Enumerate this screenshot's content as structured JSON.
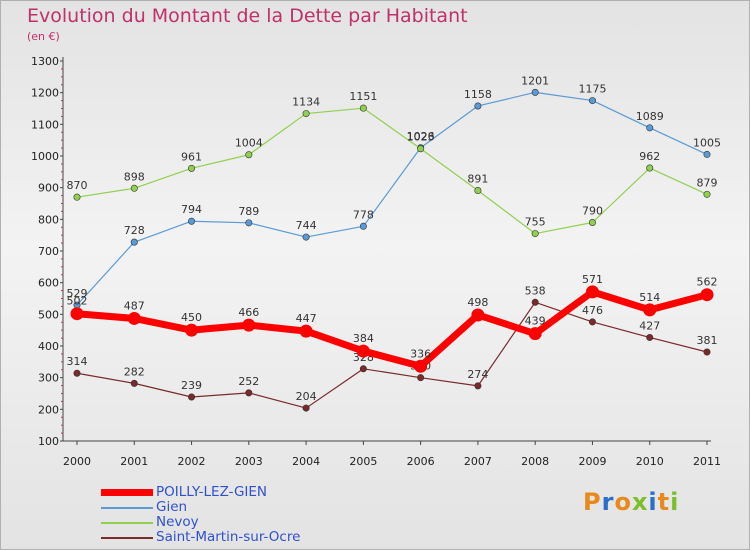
{
  "title": "Evolution du Montant de la Dette par Habitant",
  "subtitle": "(en €)",
  "logo": {
    "text": "Proxiti",
    "colors": [
      "#e8891c",
      "#2a6fc9",
      "#e8891c",
      "#7bbf2a",
      "#2a6fc9",
      "#e8891c",
      "#7bbf2a"
    ]
  },
  "chart_data": {
    "type": "line",
    "x": [
      "2000",
      "2001",
      "2002",
      "2003",
      "2004",
      "2005",
      "2006",
      "2007",
      "2008",
      "2009",
      "2010",
      "2011"
    ],
    "ylim": [
      100,
      1300
    ],
    "yticks": [
      100,
      200,
      300,
      400,
      500,
      600,
      700,
      800,
      900,
      1000,
      1100,
      1200,
      1300
    ],
    "grid": false,
    "legend_position": "bottom-left",
    "series": [
      {
        "name": "POILLY-LEZ-GIEN",
        "color": "#ff0000",
        "emphasis": true,
        "values": [
          502,
          487,
          450,
          466,
          447,
          384,
          336,
          498,
          439,
          571,
          514,
          562
        ]
      },
      {
        "name": "Gien",
        "color": "#5a9ad6",
        "emphasis": false,
        "values": [
          529,
          728,
          794,
          789,
          744,
          778,
          1026,
          1158,
          1201,
          1175,
          1089,
          1005
        ]
      },
      {
        "name": "Nevoy",
        "color": "#90d050",
        "emphasis": false,
        "values": [
          870,
          898,
          961,
          1004,
          1134,
          1151,
          1023,
          891,
          755,
          790,
          962,
          879
        ]
      },
      {
        "name": "Saint-Martin-sur-Ocre",
        "color": "#7a2a2a",
        "emphasis": false,
        "values": [
          314,
          282,
          239,
          252,
          204,
          328,
          300,
          274,
          538,
          476,
          427,
          381
        ]
      }
    ]
  }
}
